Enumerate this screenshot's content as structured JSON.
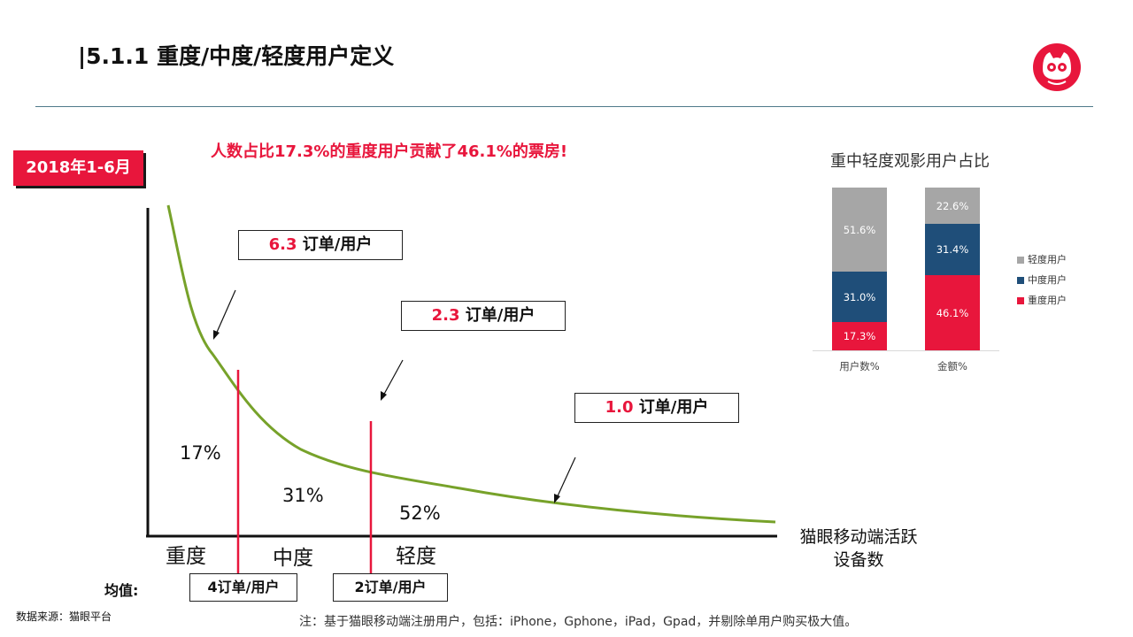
{
  "title": "|5.1.1 重度/中度/轻度用户定义",
  "date_badge": "2018年1-6月",
  "headline": "人数占比17.3%的重度用户贡献了46.1%的票房!",
  "callouts": [
    {
      "num": "6.3",
      "text": " 订单/用户"
    },
    {
      "num": "2.3",
      "text": " 订单/用户"
    },
    {
      "num": "1.0",
      "text": " 订单/用户"
    }
  ],
  "curve_chart": {
    "type": "line",
    "segment_pcts": [
      "17%",
      "31%",
      "52%"
    ],
    "segments": [
      "重度",
      "中度",
      "轻度"
    ],
    "x_axis_label_line1": "猫眼移动端活跃",
    "x_axis_label_line2": "设备数",
    "colors": {
      "curve": "#77a22a",
      "divider": "#e8163c"
    }
  },
  "mean": {
    "label": "均值:",
    "values": [
      "4订单/用户",
      "2订单/用户"
    ]
  },
  "source": "数据来源：猫眼平台",
  "note": "注：基于猫眼移动端注册用户，包括：iPhone，Gphone，iPad，Gpad，并剔除单用户购买极大值。",
  "chart_data": {
    "type": "bar",
    "stacked": true,
    "title": "重中轻度观影用户占比",
    "categories": [
      "用户数%",
      "金额%"
    ],
    "series": [
      {
        "name": "重度用户",
        "values": [
          17.3,
          46.1
        ],
        "labels": [
          "17.3%",
          "46.1%"
        ],
        "color": "#e8163c"
      },
      {
        "name": "中度用户",
        "values": [
          31.0,
          31.4
        ],
        "labels": [
          "31.0%",
          "31.4%"
        ],
        "color": "#1f4e79"
      },
      {
        "name": "轻度用户",
        "values": [
          51.6,
          22.6
        ],
        "labels": [
          "51.6%",
          "22.6%"
        ],
        "color": "#a6a6a6"
      }
    ],
    "legend_order": [
      "轻度用户",
      "中度用户",
      "重度用户"
    ],
    "legend_position": "right",
    "ylim": [
      0,
      100
    ],
    "grid": false
  }
}
